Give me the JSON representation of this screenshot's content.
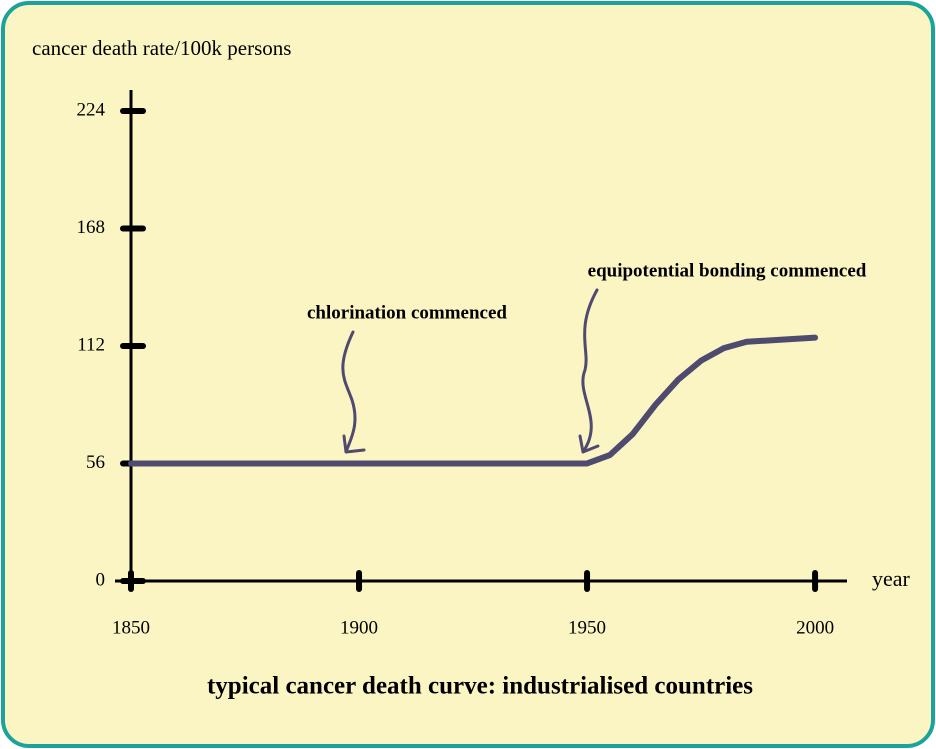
{
  "chart_data": {
    "type": "line",
    "title": "typical cancer death curve: industrialised countries",
    "y_label": "cancer death rate/100k persons",
    "x_label": "year",
    "x": [
      1850,
      1900,
      1950,
      1955,
      1960,
      1965,
      1970,
      1975,
      1980,
      1985,
      2000
    ],
    "series": [
      {
        "color": "#4f4b6e",
        "values": [
          56,
          56,
          56,
          60,
          70,
          84,
          96,
          105,
          111,
          114,
          116
        ]
      }
    ],
    "xlim": [
      1850,
      2007
    ],
    "ylim": [
      0,
      234
    ],
    "xticks": [
      1850,
      1900,
      1950,
      2000
    ],
    "yticks": [
      0,
      56,
      112,
      168,
      224
    ],
    "annotations": [
      {
        "text": "chlorination commenced",
        "x": 1900,
        "y": 56
      },
      {
        "text": "equipotential bonding commenced",
        "x": 1952,
        "y": 56
      }
    ]
  }
}
